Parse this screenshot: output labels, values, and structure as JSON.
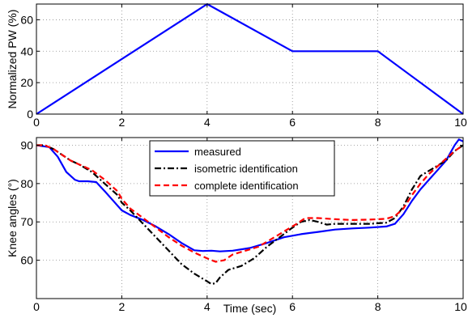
{
  "chart_data": [
    {
      "type": "line",
      "xlim": [
        0,
        10
      ],
      "ylim": [
        0,
        70
      ],
      "xticks": [
        "0",
        "2",
        "4",
        "6",
        "8",
        "10"
      ],
      "yticks": [
        "0",
        "20",
        "40",
        "60"
      ],
      "xlabel": "",
      "ylabel": "Normalized PW (%)",
      "grid": true,
      "series": [
        {
          "color": "#0000ff",
          "x": [
            0,
            4,
            6,
            8,
            10
          ],
          "y": [
            0,
            70,
            40,
            40,
            0
          ]
        }
      ]
    },
    {
      "type": "line",
      "xlim": [
        0,
        10
      ],
      "ylim": [
        50,
        92
      ],
      "xticks": [
        "0",
        "2",
        "4",
        "6",
        "8",
        "10"
      ],
      "yticks": [
        "60",
        "70",
        "80",
        "90"
      ],
      "xlabel": "Time (sec)",
      "ylabel": "Knee angles (°)",
      "grid": true,
      "legend_position": "top-center",
      "series": [
        {
          "name": "measured",
          "color": "#0000ff",
          "dash": "solid",
          "x": [
            0,
            0.3,
            0.5,
            0.7,
            0.9,
            1.0,
            1.2,
            1.4,
            1.6,
            1.8,
            2.0,
            2.2,
            2.5,
            2.8,
            3.1,
            3.4,
            3.7,
            3.9,
            4.1,
            4.3,
            4.6,
            5.0,
            5.4,
            5.8,
            6.2,
            6.6,
            7.0,
            7.4,
            7.8,
            8.2,
            8.4,
            8.6,
            8.8,
            9.0,
            9.2,
            9.4,
            9.6,
            9.8,
            9.9,
            10.0
          ],
          "y": [
            90,
            89.5,
            87,
            83,
            81,
            80.6,
            80.6,
            80.4,
            78,
            75.5,
            73,
            71.8,
            70.5,
            68.8,
            66.8,
            64.5,
            62.6,
            62.4,
            62.5,
            62.3,
            62.5,
            63.2,
            64.5,
            66,
            66.8,
            67.4,
            68,
            68.3,
            68.5,
            68.8,
            69.5,
            72,
            75.5,
            78.5,
            81,
            83.5,
            86,
            90,
            91.5,
            91
          ]
        },
        {
          "name": "isometric identification",
          "color": "#000000",
          "dash": "dashdot",
          "x": [
            0,
            0.2,
            0.4,
            0.6,
            0.8,
            1.0,
            1.3,
            1.6,
            1.9,
            2.0,
            2.2,
            2.5,
            2.8,
            3.1,
            3.4,
            3.7,
            4.0,
            4.1,
            4.2,
            4.3,
            4.5,
            4.8,
            5.1,
            5.4,
            5.7,
            6.0,
            6.2,
            6.4,
            6.6,
            6.8,
            7.0,
            7.4,
            7.8,
            8.2,
            8.4,
            8.6,
            8.8,
            9.0,
            9.3,
            9.6,
            9.8,
            10.0
          ],
          "y": [
            90,
            90,
            89,
            87.5,
            86,
            85,
            83,
            80,
            77,
            75,
            73,
            69.5,
            66,
            62.5,
            59,
            56.5,
            54.5,
            53.8,
            54,
            55.5,
            57.5,
            58.5,
            60.5,
            63.5,
            66,
            68.5,
            70,
            70.5,
            70,
            69.3,
            69.5,
            69.5,
            69.5,
            69.8,
            71,
            74,
            78.5,
            82,
            84,
            86,
            88.5,
            90
          ]
        },
        {
          "name": "complete identification",
          "color": "#ff0000",
          "dash": "dashed",
          "x": [
            0,
            0.2,
            0.4,
            0.6,
            0.8,
            1.0,
            1.3,
            1.6,
            1.9,
            2.0,
            2.2,
            2.5,
            2.8,
            3.1,
            3.4,
            3.7,
            4.0,
            4.2,
            4.4,
            4.6,
            4.9,
            5.2,
            5.5,
            5.8,
            6.1,
            6.3,
            6.6,
            7.0,
            7.4,
            7.8,
            8.2,
            8.4,
            8.6,
            8.8,
            9.0,
            9.2,
            9.4,
            9.6,
            9.8,
            10.0
          ],
          "y": [
            90,
            90,
            89,
            87.5,
            86,
            85,
            83.5,
            81,
            78,
            76,
            73.5,
            71,
            68.5,
            66,
            63.8,
            62,
            60.5,
            59.6,
            60,
            61.5,
            62.5,
            63.5,
            65.5,
            67.5,
            69.5,
            71,
            71,
            70.7,
            70.5,
            70.6,
            70.8,
            71.5,
            73.5,
            77,
            80,
            82.5,
            84.5,
            86.5,
            88.5,
            90
          ]
        }
      ]
    }
  ]
}
